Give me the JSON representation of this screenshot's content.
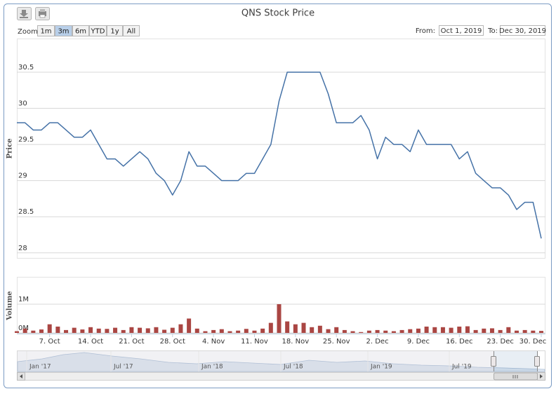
{
  "toolbar": {
    "zoom_label": "Zoom",
    "ranges": [
      "1m",
      "3m",
      "6m",
      "YTD",
      "1y",
      "All"
    ],
    "selected_range": "3m",
    "from_label": "From:",
    "from": "Oct 1, 2019",
    "to_label": "To:",
    "to": "Dec 30, 2019"
  },
  "chart_data": {
    "type": "stock",
    "title": "QNS Stock Price",
    "categories": [
      null,
      null,
      null,
      null,
      "7. Oct",
      null,
      null,
      null,
      null,
      "14. Oct",
      null,
      null,
      null,
      null,
      "21. Oct",
      null,
      null,
      null,
      null,
      "28. Oct",
      null,
      null,
      null,
      null,
      "4. Nov",
      null,
      null,
      null,
      null,
      "11. Nov",
      null,
      null,
      null,
      null,
      "18. Nov",
      null,
      null,
      null,
      null,
      "25. Nov",
      null,
      null,
      null,
      null,
      "2. Dec",
      null,
      null,
      null,
      null,
      "9. Dec",
      null,
      null,
      null,
      null,
      "16. Dec",
      null,
      null,
      null,
      null,
      "23. Dec",
      null,
      null,
      null,
      null,
      "30. Dec"
    ],
    "price": {
      "axis_title": "Price",
      "color": "#4572a7",
      "values": [
        29.8,
        29.8,
        29.7,
        29.7,
        29.8,
        29.8,
        29.7,
        29.6,
        29.6,
        29.7,
        29.5,
        29.3,
        29.3,
        29.2,
        29.3,
        29.4,
        29.3,
        29.1,
        29.0,
        28.8,
        29.0,
        29.4,
        29.2,
        29.2,
        29.1,
        29.0,
        29.0,
        29.0,
        29.1,
        29.1,
        29.3,
        29.5,
        30.1,
        30.5,
        30.5,
        30.5,
        30.5,
        30.5,
        30.2,
        29.8,
        29.8,
        29.8,
        29.9,
        29.7,
        29.3,
        29.6,
        29.5,
        29.5,
        29.4,
        29.7,
        29.5,
        29.5,
        29.5,
        29.5,
        29.3,
        29.4,
        29.1,
        29.0,
        28.9,
        28.9,
        28.8,
        28.6,
        28.7,
        28.7,
        28.2
      ],
      "ylim": [
        27.93,
        30.965
      ],
      "yticks": [
        28,
        28.5,
        29,
        29.5,
        30,
        30.5
      ],
      "grid": true
    },
    "volume": {
      "axis_title": "Volume",
      "color": "#aa4643",
      "values": [
        60000,
        150000,
        80000,
        120000,
        300000,
        220000,
        100000,
        180000,
        120000,
        200000,
        150000,
        140000,
        180000,
        100000,
        200000,
        180000,
        160000,
        200000,
        110000,
        180000,
        300000,
        500000,
        150000,
        60000,
        100000,
        130000,
        60000,
        80000,
        140000,
        80000,
        150000,
        350000,
        1000000,
        400000,
        300000,
        350000,
        200000,
        250000,
        130000,
        200000,
        100000,
        60000,
        30000,
        80000,
        100000,
        80000,
        60000,
        100000,
        130000,
        150000,
        220000,
        200000,
        200000,
        180000,
        220000,
        230000,
        100000,
        150000,
        160000,
        100000,
        200000,
        80000,
        100000,
        80000,
        70000
      ],
      "ylim": [
        0,
        1950000
      ],
      "yticks": [
        {
          "value": 0,
          "label": "0M"
        },
        {
          "value": 1000000,
          "label": "1M"
        }
      ],
      "grid": true
    }
  },
  "navigator": {
    "labels": [
      "Jan '17",
      "Jul '17",
      "Jan '18",
      "Jul '18",
      "Jan '19",
      "Jul '19"
    ]
  }
}
